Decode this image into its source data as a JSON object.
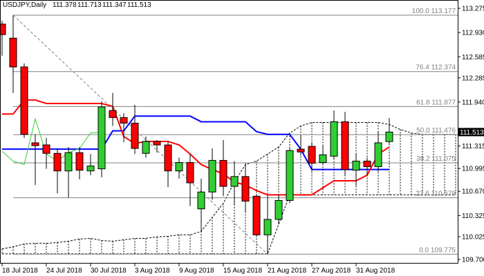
{
  "chart_data": {
    "type": "candlestick",
    "title": "USDJPY,Daily",
    "categories": [
      "18 Jul 2018",
      null,
      null,
      null,
      "24 Jul 2018",
      null,
      null,
      null,
      "30 Jul 2018",
      null,
      null,
      null,
      "3 Aug 2018",
      null,
      null,
      null,
      "9 Aug 2018",
      null,
      null,
      null,
      "15 Aug 2018",
      null,
      null,
      null,
      "21 Aug 2018",
      null,
      null,
      null,
      "27 Aug 2018",
      null,
      null,
      null,
      "31 Aug 2018",
      null,
      null,
      null,
      null,
      null,
      null,
      null,
      null,
      null
    ],
    "open": [
      113.05,
      112.85,
      112.44,
      111.36,
      111.33,
      111.21,
      110.96,
      111.22,
      110.96,
      110.99,
      111.82,
      111.72,
      111.64,
      111.21,
      111.38,
      111.33,
      110.96,
      111.08,
      110.42,
      110.66,
      111.11,
      110.74,
      110.88,
      110.6,
      110.05,
      110.27,
      110.54,
      111.27,
      111.31,
      111.08,
      111.17,
      111.66,
      110.97,
      111.1,
      111.02,
      111.378,
      null,
      null,
      null,
      null,
      null,
      null
    ],
    "high": [
      113.1,
      113.177,
      112.49,
      111.48,
      111.43,
      111.28,
      111.3,
      111.3,
      111.2,
      111.95,
      112.07,
      111.78,
      111.9,
      111.45,
      111.4,
      111.38,
      111.15,
      111.2,
      110.85,
      111.28,
      111.4,
      111.1,
      111.07,
      110.63,
      110.6,
      110.62,
      111.3,
      111.47,
      111.37,
      111.33,
      111.82,
      111.8,
      111.2,
      111.15,
      111.52,
      111.713,
      null,
      null,
      null,
      null,
      null,
      null
    ],
    "low": [
      112.6,
      112.07,
      111.43,
      110.76,
      110.99,
      110.64,
      110.58,
      110.84,
      110.9,
      110.87,
      111.6,
      111.37,
      111.2,
      111.15,
      111.22,
      110.73,
      110.85,
      110.46,
      110.1,
      110.55,
      110.6,
      110.48,
      110.38,
      110.02,
      109.775,
      110.2,
      110.5,
      111.18,
      110.95,
      111.05,
      111.13,
      110.9,
      110.75,
      110.9,
      110.95,
      111.347,
      null,
      null,
      null,
      null,
      null,
      null
    ],
    "close": [
      112.9,
      112.44,
      111.48,
      111.32,
      111.21,
      110.96,
      111.22,
      110.97,
      111.03,
      111.87,
      111.72,
      111.64,
      111.28,
      111.38,
      111.33,
      110.96,
      111.08,
      110.79,
      110.66,
      111.11,
      110.74,
      110.88,
      110.53,
      110.05,
      110.27,
      110.54,
      111.25,
      111.23,
      111.07,
      111.19,
      111.66,
      110.98,
      111.1,
      111.02,
      111.36,
      111.513,
      null,
      null,
      null,
      null,
      null,
      null
    ],
    "up_color": "#32cd32",
    "down_color": "#ff0000",
    "lines": [
      {
        "color": "#0000ff",
        "width": 2,
        "values": [
          111.27,
          111.27,
          111.27,
          111.27,
          111.27,
          111.27,
          111.27,
          111.27,
          111.27,
          111.27,
          111.53,
          111.53,
          111.74,
          111.74,
          111.74,
          111.74,
          111.74,
          111.74,
          111.66,
          111.66,
          111.66,
          111.66,
          111.66,
          111.52,
          111.48,
          111.48,
          111.48,
          111.27,
          110.98,
          110.98,
          110.98,
          110.98,
          110.98,
          110.98,
          110.98,
          110.98,
          null,
          null,
          null,
          null,
          null,
          null
        ]
      },
      {
        "color": "#ff0000",
        "width": 2,
        "values": [
          111.77,
          111.77,
          111.97,
          111.97,
          111.92,
          111.92,
          111.92,
          111.92,
          111.92,
          111.92,
          111.88,
          111.45,
          111.35,
          111.38,
          111.38,
          111.38,
          111.33,
          111.2,
          111.05,
          110.98,
          110.92,
          110.8,
          110.76,
          110.68,
          110.62,
          110.62,
          110.62,
          110.62,
          110.62,
          110.72,
          110.82,
          110.82,
          110.82,
          110.9,
          111.2,
          111.3,
          null,
          null,
          null,
          null,
          null,
          null
        ]
      },
      {
        "color": "#32cd32",
        "width": 1,
        "values": [
          111.24,
          111.1,
          111.05,
          111.7,
          111.2,
          111.1,
          111.22,
          111.28,
          111.5,
          111.513,
          null,
          null,
          null,
          null,
          null,
          null,
          null,
          null,
          null,
          null,
          null,
          null,
          null,
          null,
          null,
          null,
          null,
          null,
          null,
          null,
          null,
          null,
          null,
          null,
          null,
          null,
          null,
          null,
          null,
          null,
          null,
          null
        ]
      }
    ],
    "cloud": {
      "color": "#000000",
      "span_a": [
        109.85,
        109.88,
        109.92,
        109.93,
        109.93,
        109.94,
        109.96,
        109.99,
        110.0,
        109.97,
        109.96,
        109.98,
        110.0,
        110.0,
        110.02,
        110.03,
        110.05,
        110.05,
        110.1,
        110.3,
        110.5,
        110.8,
        111.05,
        111.1,
        111.2,
        111.3,
        111.5,
        111.6,
        111.65,
        111.65,
        111.65,
        111.65,
        111.65,
        111.65,
        111.65,
        111.62,
        111.55,
        111.5,
        111.48,
        111.48,
        111.48,
        111.48
      ],
      "span_b": [
        109.78,
        109.78,
        109.78,
        109.78,
        109.78,
        109.78,
        109.78,
        109.78,
        109.78,
        109.78,
        109.78,
        109.78,
        109.78,
        109.78,
        109.78,
        109.78,
        109.78,
        109.78,
        109.78,
        109.78,
        109.78,
        109.78,
        109.78,
        109.78,
        109.78,
        110.2,
        110.62,
        110.62,
        110.62,
        110.62,
        110.62,
        110.62,
        110.62,
        110.62,
        110.62,
        110.62,
        110.62,
        110.62,
        110.62,
        110.62,
        110.62,
        110.62
      ]
    },
    "fib_levels": [
      {
        "level": "100.0",
        "value": 113.177
      },
      {
        "level": "76.4",
        "value": 112.374
      },
      {
        "level": "61.8",
        "value": 111.877
      },
      {
        "level": "50.0",
        "value": 111.476
      },
      {
        "level": "38.2",
        "value": 111.075
      },
      {
        "level": "23.6",
        "value": 110.578
      },
      {
        "level": "0.0",
        "value": 109.775
      }
    ],
    "fib_color": "#808080",
    "ylim": [
      109.641,
      113.393
    ],
    "yticks": [
      113.275,
      {
        "value": 112.93,
        "label": "112.930"
      },
      112.585,
      112.285,
      {
        "value": 111.94,
        "label": "111.940"
      },
      111.315,
      110.995,
      {
        "value": 110.67,
        "label": "110.670"
      },
      110.325,
      110.025,
      {
        "value": 109.7,
        "label": "109.700"
      }
    ]
  }
}
